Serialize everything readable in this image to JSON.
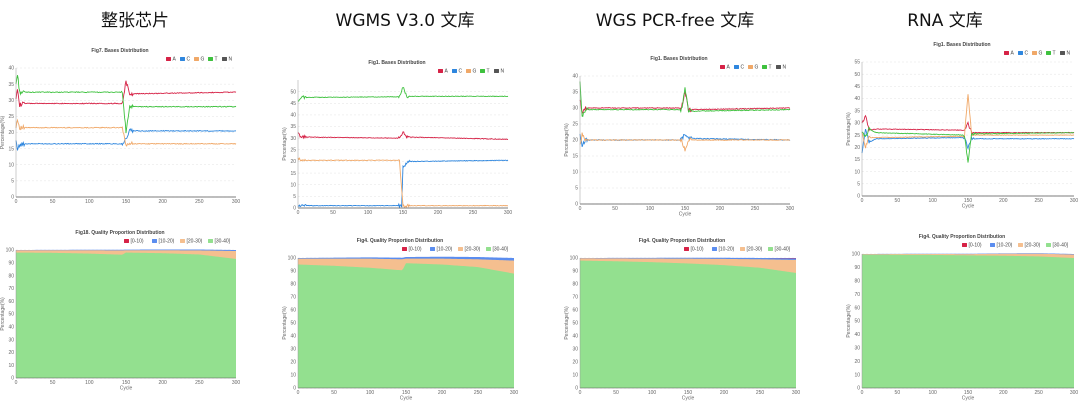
{
  "columns": [
    {
      "title": "整张芯片"
    },
    {
      "title": "WGMS V3.0 文库"
    },
    {
      "title": "WGS PCR-free 文库"
    },
    {
      "title": "RNA 文库"
    }
  ],
  "colors": {
    "A": "#d62246",
    "C": "#2e86de",
    "G": "#f0a868",
    "T": "#3ec13e",
    "N": "#555555",
    "q1": "#d62246",
    "q2": "#5b8def",
    "q3": "#f5bf8f",
    "q4": "#93e08f"
  },
  "chart_data": [
    {
      "id": "c1-bases",
      "type": "line",
      "title": "Fig7. Bases Distribution",
      "xlabel": "",
      "ylabel": "Percentage(%)",
      "xlim": [
        0,
        300
      ],
      "ylim": [
        0,
        40
      ],
      "xticks": [
        0,
        50,
        100,
        150,
        200,
        250,
        300
      ],
      "yticks": [
        0,
        5,
        10,
        15,
        20,
        25,
        30,
        35,
        40
      ],
      "legend": [
        "A",
        "C",
        "G",
        "T",
        "N"
      ],
      "legend_position": "top-right",
      "grid": true,
      "series": [
        {
          "name": "A",
          "points": [
            [
              0,
              31
            ],
            [
              2,
              34
            ],
            [
              5,
              28.5
            ],
            [
              10,
              29
            ],
            [
              145,
              29
            ],
            [
              150,
              36
            ],
            [
              155,
              32
            ],
            [
              300,
              32.5
            ]
          ]
        },
        {
          "name": "C",
          "points": [
            [
              0,
              17
            ],
            [
              2,
              15
            ],
            [
              5,
              16
            ],
            [
              10,
              16.5
            ],
            [
              145,
              16.5
            ],
            [
              150,
              18
            ],
            [
              155,
              20.5
            ],
            [
              300,
              20.5
            ]
          ]
        },
        {
          "name": "G",
          "points": [
            [
              0,
              22
            ],
            [
              2,
              24
            ],
            [
              5,
              21.5
            ],
            [
              10,
              21.5
            ],
            [
              145,
              21.5
            ],
            [
              150,
              16
            ],
            [
              155,
              16.5
            ],
            [
              300,
              16.5
            ]
          ]
        },
        {
          "name": "T",
          "points": [
            [
              0,
              35
            ],
            [
              2,
              38
            ],
            [
              5,
              32.5
            ],
            [
              10,
              32.5
            ],
            [
              145,
              32.5
            ],
            [
              150,
              20
            ],
            [
              155,
              28
            ],
            [
              300,
              28
            ]
          ]
        },
        {
          "name": "N",
          "points": [
            [
              0,
              0
            ],
            [
              300,
              0
            ]
          ]
        }
      ]
    },
    {
      "id": "c1-quality",
      "type": "area",
      "title": "Fig18. Quality Proportion Distribution",
      "xlabel": "Cycle",
      "ylabel": "Percentage(%)",
      "xlim": [
        0,
        300
      ],
      "ylim": [
        0,
        100
      ],
      "xticks": [
        0,
        50,
        100,
        150,
        200,
        250,
        300
      ],
      "yticks": [
        0,
        10,
        20,
        30,
        40,
        50,
        60,
        70,
        80,
        90,
        100
      ],
      "legend": [
        "[0-10)",
        "[10-20)",
        "[20-30)",
        "[30-40]"
      ],
      "legend_position": "top-right",
      "grid": true,
      "q4": [
        [
          0,
          98
        ],
        [
          50,
          97.8
        ],
        [
          100,
          97.2
        ],
        [
          145,
          96.3
        ],
        [
          150,
          98
        ],
        [
          200,
          97.5
        ],
        [
          250,
          96.5
        ],
        [
          300,
          93
        ]
      ],
      "q3": [
        [
          0,
          1.8
        ],
        [
          50,
          2
        ],
        [
          100,
          2.6
        ],
        [
          145,
          3.4
        ],
        [
          150,
          1.8
        ],
        [
          200,
          2.3
        ],
        [
          250,
          3.2
        ],
        [
          300,
          6.2
        ]
      ],
      "q2": [
        [
          0,
          0.2
        ],
        [
          300,
          0.8
        ]
      ]
    },
    {
      "id": "c2-bases",
      "type": "line",
      "title": "Fig1. Bases Distribution",
      "xlabel": "",
      "ylabel": "Percentage(%)",
      "xlim": [
        0,
        300
      ],
      "ylim": [
        0,
        55
      ],
      "xticks": [
        0,
        50,
        100,
        150,
        200,
        250,
        300
      ],
      "yticks": [
        0,
        5,
        10,
        15,
        20,
        25,
        30,
        35,
        40,
        45,
        50
      ],
      "legend": [
        "A",
        "C",
        "G",
        "T",
        "N"
      ],
      "legend_position": "top-right",
      "grid": true,
      "series": [
        {
          "name": "A",
          "points": [
            [
              0,
              32
            ],
            [
              5,
              30.5
            ],
            [
              145,
              30
            ],
            [
              150,
              33
            ],
            [
              155,
              30.5
            ],
            [
              300,
              29.5
            ]
          ]
        },
        {
          "name": "C",
          "points": [
            [
              0,
              1
            ],
            [
              145,
              1
            ],
            [
              148,
              1
            ],
            [
              150,
              18
            ],
            [
              160,
              20
            ],
            [
              300,
              20.5
            ]
          ]
        },
        {
          "name": "G",
          "points": [
            [
              0,
              21
            ],
            [
              5,
              20.5
            ],
            [
              145,
              20.5
            ],
            [
              150,
              1
            ],
            [
              300,
              1
            ]
          ]
        },
        {
          "name": "T",
          "points": [
            [
              0,
              46
            ],
            [
              5,
              47.5
            ],
            [
              145,
              47.8
            ],
            [
              150,
              52
            ],
            [
              155,
              48
            ],
            [
              300,
              48
            ]
          ]
        },
        {
          "name": "N",
          "points": [
            [
              0,
              0
            ],
            [
              300,
              0
            ]
          ]
        }
      ]
    },
    {
      "id": "c2-quality",
      "type": "area",
      "title": "Fig4. Quality Proportion Distribution",
      "xlabel": "Cycle",
      "ylabel": "Percentage(%)",
      "xlim": [
        0,
        300
      ],
      "ylim": [
        0,
        100
      ],
      "xticks": [
        0,
        50,
        100,
        150,
        200,
        250,
        300
      ],
      "yticks": [
        0,
        10,
        20,
        30,
        40,
        50,
        60,
        70,
        80,
        90,
        100
      ],
      "legend": [
        "[0-10)",
        "[10-20)",
        "[20-30)",
        "[30-40]"
      ],
      "legend_position": "top-right",
      "grid": true,
      "q4": [
        [
          0,
          95
        ],
        [
          50,
          94
        ],
        [
          100,
          92.5
        ],
        [
          145,
          90.5
        ],
        [
          150,
          96
        ],
        [
          200,
          95
        ],
        [
          250,
          93
        ],
        [
          300,
          88
        ]
      ],
      "q3": [
        [
          0,
          4.5
        ],
        [
          50,
          5.5
        ],
        [
          100,
          7
        ],
        [
          145,
          8.5
        ],
        [
          150,
          3.5
        ],
        [
          200,
          4.5
        ],
        [
          250,
          6
        ],
        [
          300,
          10
        ]
      ],
      "q2": [
        [
          0,
          0.5
        ],
        [
          300,
          2
        ]
      ]
    },
    {
      "id": "c3-bases",
      "type": "line",
      "title": "Fig1. Bases Distribution",
      "xlabel": "Cycle",
      "ylabel": "Percentage(%)",
      "xlim": [
        0,
        300
      ],
      "ylim": [
        0,
        40
      ],
      "xticks": [
        0,
        50,
        100,
        150,
        200,
        250,
        300
      ],
      "yticks": [
        0,
        5,
        10,
        15,
        20,
        25,
        30,
        35,
        40
      ],
      "legend": [
        "A",
        "C",
        "G",
        "T",
        "N"
      ],
      "legend_position": "top-right",
      "grid": true,
      "series": [
        {
          "name": "A",
          "points": [
            [
              0,
              33
            ],
            [
              3,
              28
            ],
            [
              8,
              30
            ],
            [
              145,
              30
            ],
            [
              150,
              35
            ],
            [
              155,
              29.5
            ],
            [
              300,
              30
            ]
          ]
        },
        {
          "name": "C",
          "points": [
            [
              0,
              22
            ],
            [
              3,
              18
            ],
            [
              8,
              20
            ],
            [
              145,
              20
            ],
            [
              150,
              22
            ],
            [
              155,
              20.5
            ],
            [
              300,
              20
            ]
          ]
        },
        {
          "name": "G",
          "points": [
            [
              0,
              18
            ],
            [
              3,
              22
            ],
            [
              8,
              20
            ],
            [
              145,
              20
            ],
            [
              150,
              17
            ],
            [
              155,
              20
            ],
            [
              300,
              20
            ]
          ]
        },
        {
          "name": "T",
          "points": [
            [
              0,
              38
            ],
            [
              3,
              27
            ],
            [
              8,
              29.5
            ],
            [
              145,
              29.5
            ],
            [
              150,
              36
            ],
            [
              155,
              29
            ],
            [
              300,
              29.5
            ]
          ]
        },
        {
          "name": "N",
          "points": [
            [
              0,
              0
            ],
            [
              300,
              0
            ]
          ]
        }
      ]
    },
    {
      "id": "c3-quality",
      "type": "area",
      "title": "Fig4. Quality Proportion Distribution",
      "xlabel": "Cycle",
      "ylabel": "Percentage(%)",
      "xlim": [
        0,
        300
      ],
      "ylim": [
        0,
        100
      ],
      "xticks": [
        0,
        50,
        100,
        150,
        200,
        250,
        300
      ],
      "yticks": [
        0,
        10,
        20,
        30,
        40,
        50,
        60,
        70,
        80,
        90,
        100
      ],
      "legend": [
        "[0-10)",
        "[10-20)",
        "[20-30)",
        "[30-40]"
      ],
      "legend_position": "top-right",
      "grid": true,
      "q4": [
        [
          0,
          98
        ],
        [
          50,
          97.5
        ],
        [
          100,
          96.8
        ],
        [
          150,
          95.8
        ],
        [
          200,
          94.5
        ],
        [
          250,
          92.5
        ],
        [
          300,
          88.5
        ]
      ],
      "q3": [
        [
          0,
          1.8
        ],
        [
          50,
          2.2
        ],
        [
          100,
          2.8
        ],
        [
          150,
          3.7
        ],
        [
          200,
          4.8
        ],
        [
          250,
          6.5
        ],
        [
          300,
          10
        ]
      ],
      "q2": [
        [
          0,
          0.2
        ],
        [
          300,
          1.2
        ]
      ]
    },
    {
      "id": "c4-bases",
      "type": "line",
      "title": "Fig1. Bases Distribution",
      "xlabel": "Cycle",
      "ylabel": "Percentage(%)",
      "xlim": [
        0,
        300
      ],
      "ylim": [
        0,
        55
      ],
      "xticks": [
        0,
        50,
        100,
        150,
        200,
        250,
        300
      ],
      "yticks": [
        0,
        5,
        10,
        15,
        20,
        25,
        30,
        35,
        40,
        45,
        50,
        55
      ],
      "legend": [
        "A",
        "C",
        "G",
        "T",
        "N"
      ],
      "legend_position": "top-right",
      "grid": true,
      "series": [
        {
          "name": "A",
          "points": [
            [
              0,
              30
            ],
            [
              5,
              33
            ],
            [
              10,
              27
            ],
            [
              20,
              27.5
            ],
            [
              145,
              27
            ],
            [
              150,
              30
            ],
            [
              155,
              26
            ],
            [
              300,
              26
            ]
          ]
        },
        {
          "name": "C",
          "points": [
            [
              0,
              18
            ],
            [
              5,
              28
            ],
            [
              10,
              22
            ],
            [
              20,
              23.5
            ],
            [
              145,
              24
            ],
            [
              150,
              20
            ],
            [
              155,
              23.5
            ],
            [
              300,
              23.5
            ]
          ]
        },
        {
          "name": "G",
          "points": [
            [
              0,
              26
            ],
            [
              5,
              20
            ],
            [
              10,
              24
            ],
            [
              20,
              24
            ],
            [
              145,
              24.5
            ],
            [
              150,
              42
            ],
            [
              155,
              25
            ],
            [
              300,
              25
            ]
          ]
        },
        {
          "name": "T",
          "points": [
            [
              0,
              26
            ],
            [
              5,
              24
            ],
            [
              10,
              27.5
            ],
            [
              20,
              26
            ],
            [
              145,
              25
            ],
            [
              150,
              14
            ],
            [
              155,
              25.5
            ],
            [
              300,
              26
            ]
          ]
        },
        {
          "name": "N",
          "points": [
            [
              0,
              0
            ],
            [
              300,
              0
            ]
          ]
        }
      ]
    },
    {
      "id": "c4-quality",
      "type": "area",
      "title": "Fig4. Quality Proportion Distribution",
      "xlabel": "Cycle",
      "ylabel": "Percentage(%)",
      "xlim": [
        0,
        300
      ],
      "ylim": [
        0,
        100
      ],
      "xticks": [
        0,
        50,
        100,
        150,
        200,
        250,
        300
      ],
      "yticks": [
        0,
        10,
        20,
        30,
        40,
        50,
        60,
        70,
        80,
        90,
        100
      ],
      "legend": [
        "[0-10)",
        "[10-20)",
        "[20-30)",
        "[30-40]"
      ],
      "legend_position": "top-right",
      "grid": true,
      "q4": [
        [
          0,
          99.5
        ],
        [
          100,
          99.3
        ],
        [
          150,
          99
        ],
        [
          200,
          98.7
        ],
        [
          250,
          98.2
        ],
        [
          300,
          97
        ]
      ],
      "q3": [
        [
          0,
          0.4
        ],
        [
          150,
          0.9
        ],
        [
          300,
          2.6
        ]
      ],
      "q2": [
        [
          0,
          0.1
        ],
        [
          300,
          0.4
        ]
      ]
    }
  ]
}
